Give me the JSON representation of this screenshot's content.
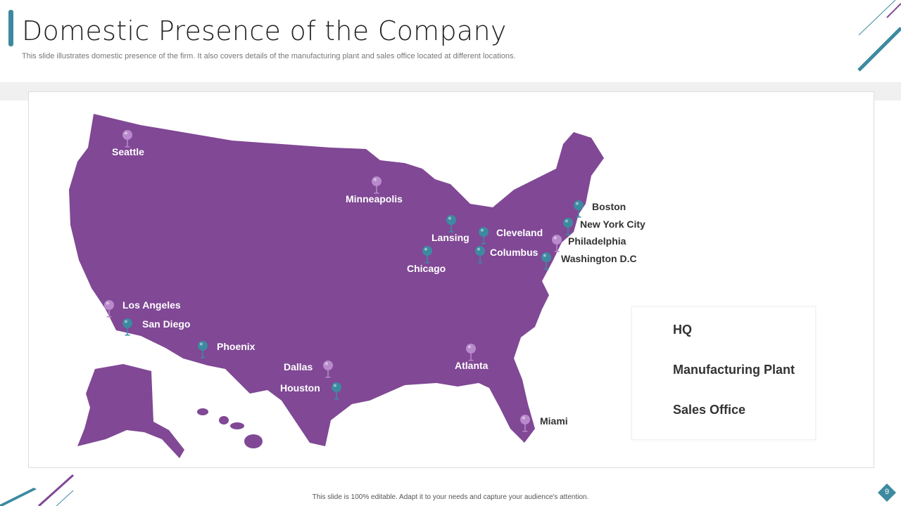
{
  "header": {
    "title": "Domestic Presence of the Company",
    "subtitle": "This slide illustrates domestic presence of the firm. It also covers details of the manufacturing plant and sales office located at different locations."
  },
  "colors": {
    "map": "#804895",
    "hq": "#a05fb5",
    "manufacturing": "#b88acb",
    "sales": "#3d8aa0"
  },
  "cities": [
    {
      "name": "Seattle",
      "type": "manufacturing"
    },
    {
      "name": "Minneapolis",
      "type": "manufacturing"
    },
    {
      "name": "Lansing",
      "type": "sales"
    },
    {
      "name": "Chicago",
      "type": "sales"
    },
    {
      "name": "Cleveland",
      "type": "sales"
    },
    {
      "name": "Columbus",
      "type": "sales"
    },
    {
      "name": "Boston",
      "type": "sales"
    },
    {
      "name": "New York City",
      "type": "sales"
    },
    {
      "name": "Philadelphia",
      "type": "manufacturing"
    },
    {
      "name": "Washington D.C",
      "type": "sales"
    },
    {
      "name": "Los Angeles",
      "type": "manufacturing"
    },
    {
      "name": "San Diego",
      "type": "sales"
    },
    {
      "name": "Phoenix",
      "type": "sales"
    },
    {
      "name": "Dallas",
      "type": "manufacturing"
    },
    {
      "name": "Houston",
      "type": "sales"
    },
    {
      "name": "Atlanta",
      "type": "manufacturing"
    },
    {
      "name": "Miami",
      "type": "manufacturing"
    }
  ],
  "legend": [
    {
      "label": "HQ",
      "type": "hq"
    },
    {
      "label": "Manufacturing Plant",
      "type": "manufacturing"
    },
    {
      "label": "Sales Office",
      "type": "sales"
    }
  ],
  "footer": {
    "text": "This slide is 100% editable. Adapt it to your needs and capture your audience's attention.",
    "page": "9"
  }
}
